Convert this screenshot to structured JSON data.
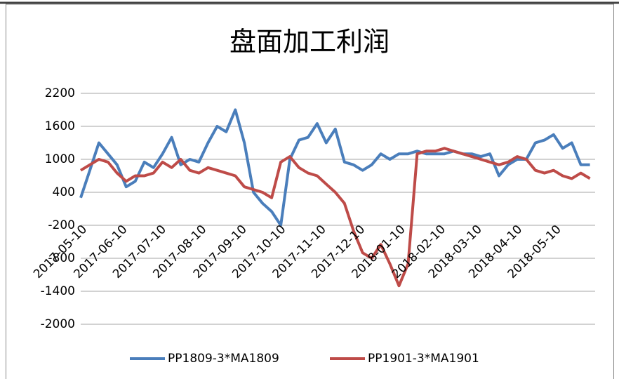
{
  "chart_data": {
    "type": "line",
    "title": "盘面加工利润",
    "x": [
      "2017-05-10",
      "2017-05-17",
      "2017-05-24",
      "2017-05-31",
      "2017-06-07",
      "2017-06-14",
      "2017-06-21",
      "2017-06-28",
      "2017-07-05",
      "2017-07-12",
      "2017-07-19",
      "2017-07-26",
      "2017-08-02",
      "2017-08-09",
      "2017-08-16",
      "2017-08-23",
      "2017-08-30",
      "2017-09-06",
      "2017-09-13",
      "2017-09-20",
      "2017-09-27",
      "2017-10-04",
      "2017-10-11",
      "2017-10-18",
      "2017-10-25",
      "2017-11-01",
      "2017-11-08",
      "2017-11-15",
      "2017-11-22",
      "2017-11-29",
      "2017-12-06",
      "2017-12-13",
      "2017-12-20",
      "2017-12-27",
      "2018-01-03",
      "2018-01-10",
      "2018-01-17",
      "2018-01-24",
      "2018-01-31",
      "2018-02-07",
      "2018-02-14",
      "2018-02-21",
      "2018-02-28",
      "2018-03-07",
      "2018-03-14",
      "2018-03-21",
      "2018-03-28",
      "2018-04-04",
      "2018-04-11",
      "2018-04-18",
      "2018-04-25",
      "2018-05-02",
      "2018-05-09",
      "2018-05-16",
      "2018-05-23",
      "2018-05-30",
      "2018-06-06"
    ],
    "series": [
      {
        "name": "PP1809-3*MA1809",
        "color": "#4a7ebb",
        "values": [
          300,
          800,
          1300,
          1100,
          900,
          500,
          600,
          950,
          850,
          1100,
          1400,
          900,
          1000,
          950,
          1300,
          1600,
          1500,
          1900,
          1300,
          400,
          200,
          50,
          -200,
          1000,
          1350,
          1400,
          1650,
          1300,
          1550,
          950,
          900,
          800,
          900,
          1100,
          1000,
          1100,
          1100,
          1150,
          1100,
          1100,
          1100,
          1150,
          1100,
          1100,
          1050,
          1100,
          700,
          900,
          1000,
          1000,
          1300,
          1350,
          1450,
          1200,
          1300,
          900,
          900
        ]
      },
      {
        "name": "PP1901-3*MA1901",
        "color": "#be4b48",
        "values": [
          800,
          900,
          1000,
          950,
          750,
          600,
          700,
          700,
          750,
          950,
          850,
          1000,
          800,
          750,
          850,
          800,
          750,
          700,
          500,
          450,
          400,
          300,
          950,
          1050,
          850,
          750,
          700,
          550,
          400,
          200,
          -300,
          -700,
          -800,
          -550,
          -900,
          -1300,
          -900,
          1100,
          1150,
          1150,
          1200,
          1150,
          1100,
          1050,
          1000,
          950,
          900,
          950,
          1050,
          1000,
          800,
          750,
          800,
          700,
          650,
          750,
          650
        ]
      }
    ],
    "xlim": [
      "2017-05-10",
      "2018-06-10"
    ],
    "xticks": [
      "2017-05-10",
      "2017-06-10",
      "2017-07-10",
      "2017-08-10",
      "2017-09-10",
      "2017-10-10",
      "2017-11-10",
      "2017-12-10",
      "2018-01-10",
      "2018-02-10",
      "2018-03-10",
      "2018-04-10",
      "2018-05-10"
    ],
    "ylim": [
      -2000,
      2200
    ],
    "yticks": [
      2200,
      1600,
      1000,
      400,
      -200,
      -800,
      -1400,
      -2000
    ],
    "grid": true,
    "legend": "bottom"
  }
}
